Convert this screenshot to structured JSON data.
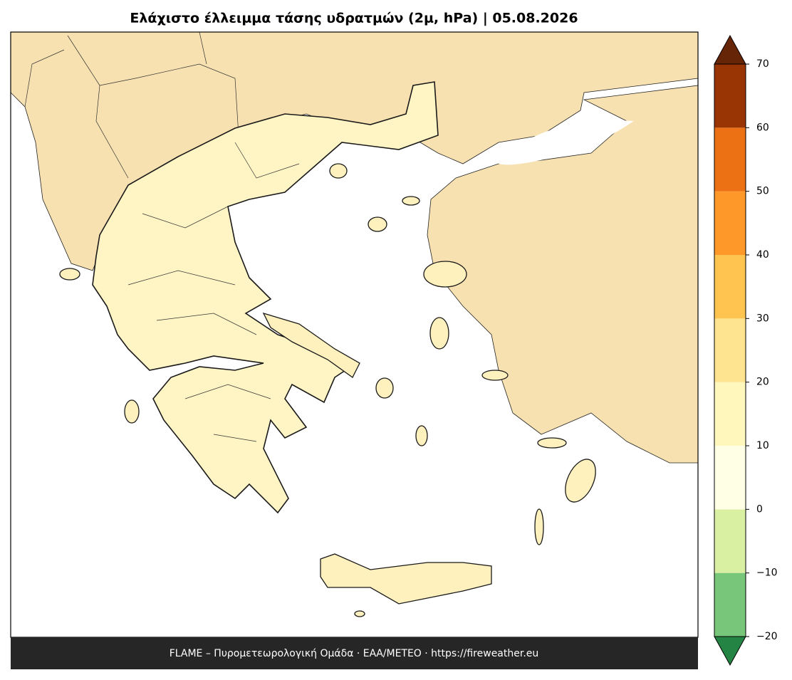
{
  "title": "Ελάχιστο έλλειμμα τάσης υδρατμών (2μ, hPa)  |  05.08.2026",
  "footer": "FLAME – Πυρομετεωρολογική Ομάδα · ΕΑΑ/METEO · https://fireweather.eu",
  "colorbar": {
    "ticks": [
      {
        "value": -20,
        "label": "−20"
      },
      {
        "value": -10,
        "label": "−10"
      },
      0,
      10,
      20,
      30,
      40,
      50,
      60,
      70
    ],
    "colors": [
      "#78c679",
      "#d9f0a3",
      "#ffffe5",
      "#fff7bc",
      "#fee391",
      "#fec44f",
      "#fe9929",
      "#ec7014",
      "#993404"
    ],
    "extend_low_color": "#238443",
    "extend_high_color": "#662506"
  }
}
